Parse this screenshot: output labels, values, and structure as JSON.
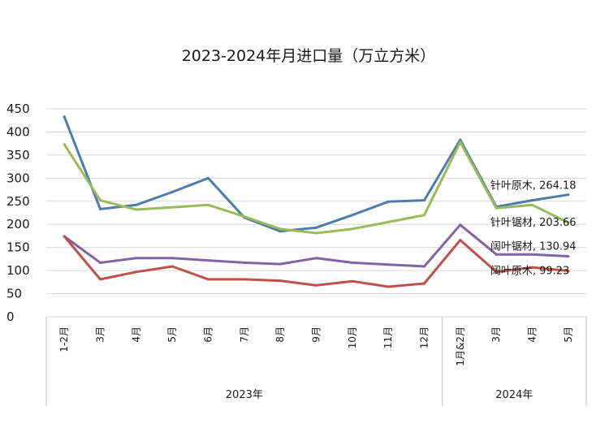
{
  "chart_data": {
    "type": "line",
    "title": "2023-2024年月进口量（万立方米）",
    "xlabel": "",
    "ylabel": "",
    "ylim": [
      0,
      450
    ],
    "yticks": [
      0,
      50,
      100,
      150,
      200,
      250,
      300,
      350,
      400,
      450
    ],
    "grid": true,
    "categories": [
      "1-2月",
      "3月",
      "4月",
      "5月",
      "6月",
      "7月",
      "8月",
      "9月",
      "10月",
      "11月",
      "12月",
      "1月&2月",
      "3月",
      "4月",
      "5月"
    ],
    "groups": [
      {
        "label": "2023年",
        "count": 11
      },
      {
        "label": "2024年",
        "count": 4
      }
    ],
    "series": [
      {
        "name": "针叶原木",
        "color": "#4f7cac",
        "values": [
          433,
          233,
          242,
          270,
          300,
          215,
          185,
          193,
          220,
          249,
          252,
          383,
          238,
          252,
          264.18
        ],
        "end_label": "针叶原木, 264.18"
      },
      {
        "name": "针叶锯材",
        "color": "#9bbb59",
        "values": [
          373,
          252,
          232,
          237,
          242,
          217,
          190,
          181,
          190,
          205,
          220,
          378,
          235,
          242,
          203.66
        ],
        "end_label": "针叶锯材, 203.66"
      },
      {
        "name": "阔叶锯材",
        "color": "#8064a2",
        "values": [
          174,
          117,
          127,
          127,
          122,
          117,
          114,
          127,
          117,
          113,
          109,
          199,
          135,
          135,
          130.94
        ],
        "end_label": "阔叶锯材, 130.94"
      },
      {
        "name": "阔叶原木",
        "color": "#c0504d",
        "values": [
          174,
          81,
          97,
          109,
          81,
          81,
          78,
          68,
          77,
          65,
          72,
          166,
          97,
          107,
          99.23
        ],
        "end_label": "阔叶原木, 99.23"
      }
    ]
  }
}
